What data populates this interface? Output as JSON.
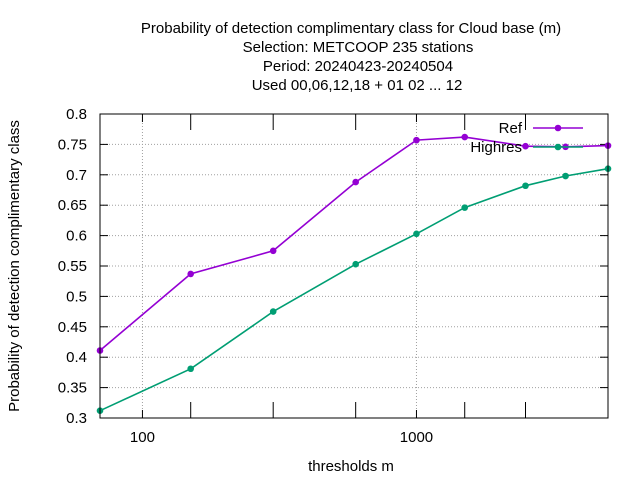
{
  "chart_data": {
    "type": "line",
    "title_lines": [
      "Probability of detection complimentary class  for Cloud base (m)",
      "Selection: METCOOP    235 stations",
      "Period: 20240423-20240504",
      "Used  00,06,12,18 + 01 02 ... 12"
    ],
    "xlabel": "thresholds m",
    "ylabel": "Probability of detection complimentary class",
    "x_scale": "log",
    "xlim": [
      70,
      5000
    ],
    "ylim": [
      0.3,
      0.8
    ],
    "x_tick_labels": [
      {
        "value": 100,
        "label": "100"
      },
      {
        "value": 1000,
        "label": "1000"
      }
    ],
    "x_minor_ticks": [
      150,
      300,
      600,
      1500,
      2500
    ],
    "y_ticks": [
      0.3,
      0.35,
      0.4,
      0.45,
      0.5,
      0.55,
      0.6,
      0.65,
      0.7,
      0.75,
      0.8
    ],
    "y_tick_labels": [
      "0.3",
      "0.35",
      "0.4",
      "0.45",
      "0.5",
      "0.55",
      "0.6",
      "0.65",
      "0.7",
      "0.75",
      "0.8"
    ],
    "grid": true,
    "legend_position": "top-right",
    "x": [
      70,
      150,
      300,
      600,
      1000,
      1500,
      2500,
      3500,
      5000
    ],
    "series": [
      {
        "name": "Ref",
        "color": "#9400d3",
        "values": [
          0.411,
          0.537,
          0.575,
          0.688,
          0.757,
          0.762,
          0.747,
          0.746,
          0.748
        ]
      },
      {
        "name": "Highres",
        "color": "#009e73",
        "values": [
          0.312,
          0.381,
          0.475,
          0.553,
          0.603,
          0.646,
          0.682,
          0.698,
          0.71
        ]
      }
    ]
  }
}
